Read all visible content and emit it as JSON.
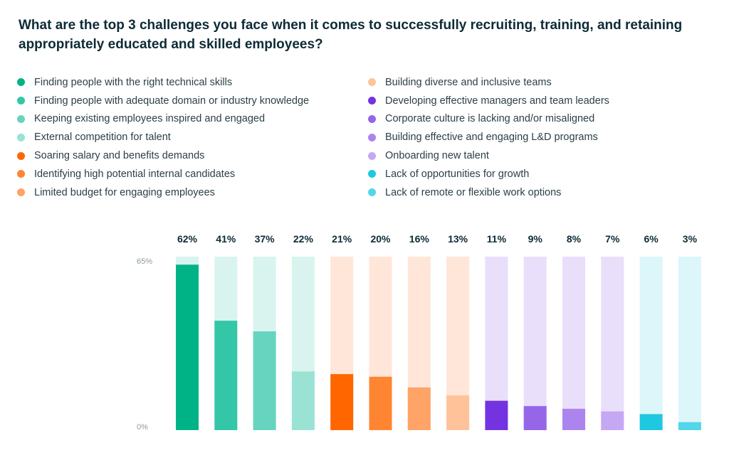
{
  "chart_data": {
    "type": "bar",
    "title": "What are the top 3 challenges you face when it comes to successfully recruiting, training, and retaining appropriately educated and skilled employees?",
    "xlabel": "",
    "ylabel": "",
    "ylim": [
      0,
      65
    ],
    "yticks": [
      "0%",
      "65%"
    ],
    "grid": false,
    "legend_placement": "top",
    "categories": [
      "Finding people with the right technical skills",
      "Finding people with adequate domain or industry knowledge",
      "Keeping existing employees inspired and engaged",
      "External competition for talent",
      "Soaring salary and benefits demands",
      "Identifying high potential internal candidates",
      "Limited budget for engaging employees",
      "Building diverse and inclusive teams",
      "Developing effective managers and team leaders",
      "Corporate culture is lacking and/or misaligned",
      "Building effective and engaging L&D programs",
      "Onboarding new talent",
      "Lack of opportunities for growth",
      "Lack of remote or flexible work options"
    ],
    "values": [
      62,
      41,
      37,
      22,
      21,
      20,
      16,
      13,
      11,
      9,
      8,
      7,
      6,
      3
    ],
    "value_labels": [
      "62%",
      "41%",
      "37%",
      "22%",
      "21%",
      "20%",
      "16%",
      "13%",
      "11%",
      "9%",
      "8%",
      "7%",
      "6%",
      "3%"
    ],
    "colors": [
      "#00b386",
      "#33c7a8",
      "#66d4bf",
      "#99e2d4",
      "#ff6600",
      "#ff8533",
      "#ffa366",
      "#ffc299",
      "#7433e0",
      "#9566e8",
      "#ab85ed",
      "#c4a8f3",
      "#1ec8e0",
      "#52d6ea"
    ],
    "track_colors": [
      "#d9f4ee",
      "#d9f4ee",
      "#d9f4ee",
      "#d9f4ee",
      "#ffe6d9",
      "#ffe6d9",
      "#ffe6d9",
      "#ffe6d9",
      "#e9dffb",
      "#e9dffb",
      "#e9dffb",
      "#e9dffb",
      "#dcf6fa",
      "#dcf6fa"
    ]
  },
  "legend": {
    "left": [
      {
        "label": "Finding people with the right technical skills",
        "color": "#00b386"
      },
      {
        "label": "Finding people with adequate domain or industry knowledge",
        "color": "#33c7a8"
      },
      {
        "label": "Keeping existing employees inspired and engaged",
        "color": "#66d4bf"
      },
      {
        "label": "External competition for talent",
        "color": "#99e2d4"
      },
      {
        "label": "Soaring salary and benefits demands",
        "color": "#ff6600"
      },
      {
        "label": "Identifying high potential internal candidates",
        "color": "#ff8533"
      },
      {
        "label": "Limited budget for engaging employees",
        "color": "#ffa366"
      }
    ],
    "right": [
      {
        "label": "Building diverse and inclusive teams",
        "color": "#ffc299"
      },
      {
        "label": "Developing effective managers and team leaders",
        "color": "#7433e0"
      },
      {
        "label": "Corporate culture is lacking and/or misaligned",
        "color": "#9566e8"
      },
      {
        "label": "Building effective and engaging L&D programs",
        "color": "#ab85ed"
      },
      {
        "label": "Onboarding new talent",
        "color": "#c4a8f3"
      },
      {
        "label": "Lack of opportunities for growth",
        "color": "#1ec8e0"
      },
      {
        "label": "Lack of remote or flexible work options",
        "color": "#52d6ea"
      }
    ]
  }
}
